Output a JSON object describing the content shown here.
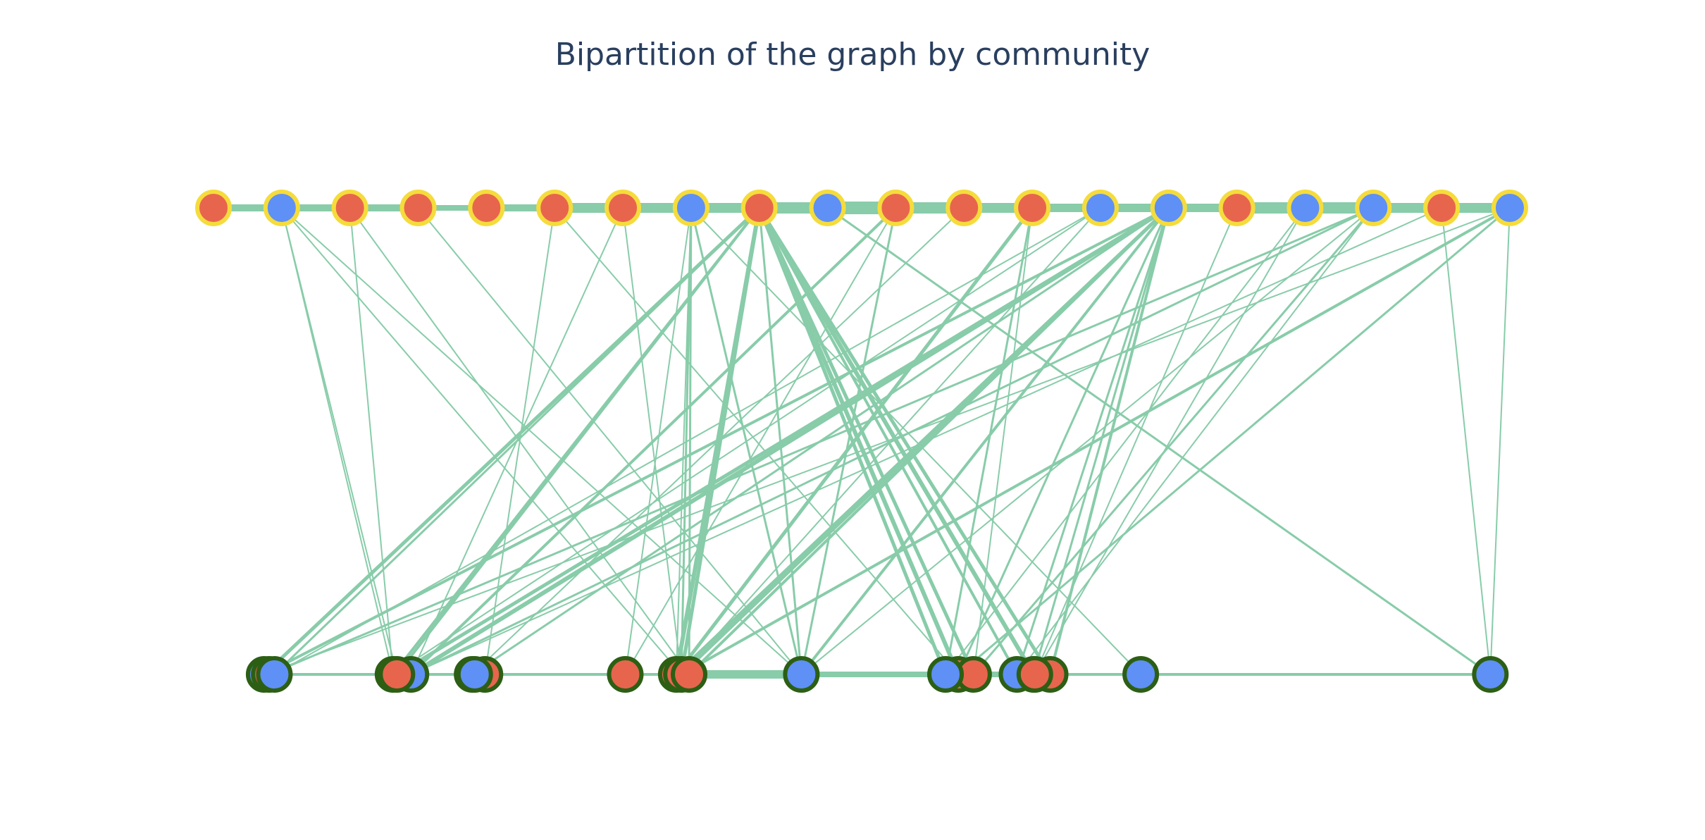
{
  "title": "Bipartition of the graph by community",
  "colors": {
    "edge": "#88cca9",
    "community_a": "#e8654d",
    "community_b": "#5e90f6",
    "top_outline": "#f5dc3c",
    "bottom_outline": "#2c5f14"
  },
  "nodes": {
    "top": [
      "a",
      "b",
      "a",
      "a",
      "a",
      "a",
      "a",
      "b",
      "a",
      "b",
      "a",
      "a",
      "a",
      "b",
      "b",
      "a",
      "b",
      "b",
      "a",
      "b"
    ],
    "bottom": [
      {
        "x": 0.032,
        "c": "b"
      },
      {
        "x": 0.036,
        "c": "a"
      },
      {
        "x": 0.04,
        "c": "b"
      },
      {
        "x": 0.133,
        "c": "a"
      },
      {
        "x": 0.147,
        "c": "b"
      },
      {
        "x": 0.136,
        "c": "a"
      },
      {
        "x": 0.195,
        "c": "b"
      },
      {
        "x": 0.205,
        "c": "a"
      },
      {
        "x": 0.197,
        "c": "b"
      },
      {
        "x": 0.315,
        "c": "a"
      },
      {
        "x": 0.355,
        "c": "a"
      },
      {
        "x": 0.359,
        "c": "a"
      },
      {
        "x": 0.365,
        "c": "a"
      },
      {
        "x": 0.453,
        "c": "b"
      },
      {
        "x": 0.576,
        "c": "a"
      },
      {
        "x": 0.588,
        "c": "a"
      },
      {
        "x": 0.566,
        "c": "b"
      },
      {
        "x": 0.635,
        "c": "a"
      },
      {
        "x": 0.648,
        "c": "a"
      },
      {
        "x": 0.622,
        "c": "b"
      },
      {
        "x": 0.636,
        "c": "a"
      },
      {
        "x": 0.719,
        "c": "b"
      },
      {
        "x": 0.993,
        "c": "b"
      }
    ]
  }
}
